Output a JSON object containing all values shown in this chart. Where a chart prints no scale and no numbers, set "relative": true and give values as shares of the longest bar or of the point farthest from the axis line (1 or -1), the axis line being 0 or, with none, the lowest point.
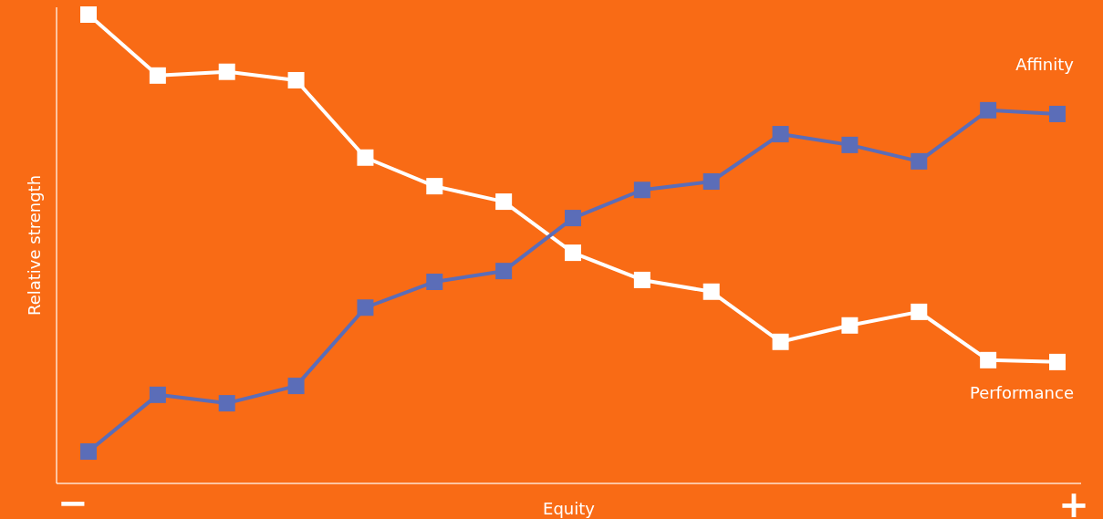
{
  "chart_data": {
    "type": "line",
    "relative": true,
    "xlabel": "Equity",
    "ylabel": "Relative strength",
    "categories": [
      null,
      null,
      null,
      null,
      null,
      null,
      null,
      null,
      null,
      null,
      null,
      null,
      null,
      null,
      null
    ],
    "marker": "square",
    "line_style": "solid",
    "legend": false,
    "annotations": [
      "−",
      "+"
    ],
    "series": [
      {
        "name": "Performance",
        "color": "#ffffff",
        "values": [
          1,
          0.87,
          0.878,
          0.86,
          0.695,
          0.634,
          0.601,
          0.492,
          0.434,
          0.409,
          0.302,
          0.337,
          0.366,
          0.263,
          0.259
        ]
      },
      {
        "name": "Affinity",
        "color": "#5b6db8",
        "values": [
          0.068,
          0.189,
          0.171,
          0.208,
          0.375,
          0.43,
          0.453,
          0.566,
          0.626,
          0.644,
          0.745,
          0.722,
          0.687,
          0.796,
          0.788
        ]
      }
    ]
  }
}
